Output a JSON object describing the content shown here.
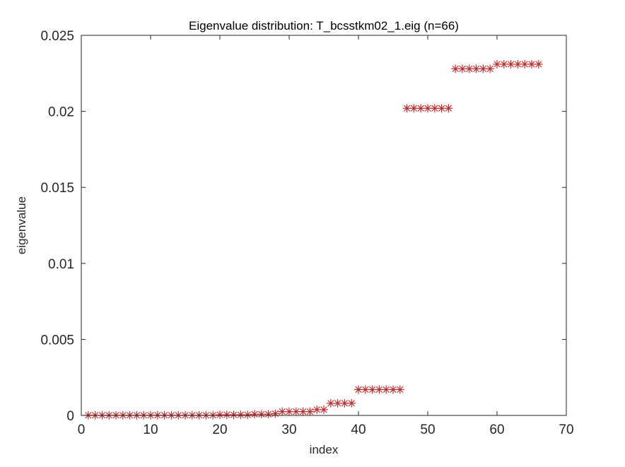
{
  "chart_data": {
    "type": "scatter",
    "title": "Eigenvalue distribution: T_bcsstkm02_1.eig (n=66)",
    "xlabel": "index",
    "ylabel": "eigenvalue",
    "xlim": [
      0,
      70
    ],
    "ylim": [
      0,
      0.025
    ],
    "xticks": [
      0,
      10,
      20,
      30,
      40,
      50,
      60,
      70
    ],
    "xtick_labels": [
      "0",
      "10",
      "20",
      "30",
      "40",
      "50",
      "60",
      "70"
    ],
    "yticks": [
      0,
      0.005,
      0.01,
      0.015,
      0.02,
      0.025
    ],
    "ytick_labels": [
      "0",
      "0.005",
      "0.01",
      "0.015",
      "0.02",
      "0.025"
    ],
    "grid": false,
    "marker": "asterisk",
    "marker_color": "#cc1f1f",
    "series": [
      {
        "x": [
          1,
          2,
          3,
          4,
          5,
          6,
          7,
          8,
          9,
          10,
          11,
          12,
          13,
          14,
          15,
          16,
          17,
          18,
          19,
          20,
          21,
          22,
          23,
          24,
          25,
          26,
          27,
          28,
          29,
          30,
          31,
          32,
          33,
          34,
          35,
          36,
          37,
          38,
          39,
          40,
          41,
          42,
          43,
          44,
          45,
          46,
          47,
          48,
          49,
          50,
          51,
          52,
          53,
          54,
          55,
          56,
          57,
          58,
          59,
          60,
          61,
          62,
          63,
          64,
          65,
          66
        ],
        "values": [
          1e-05,
          1e-05,
          1e-05,
          1e-05,
          1e-05,
          1e-05,
          1e-05,
          1e-05,
          1e-05,
          1e-05,
          1e-05,
          1e-05,
          1e-05,
          1e-05,
          1e-05,
          1e-05,
          1e-05,
          1e-05,
          1e-05,
          4e-05,
          4e-05,
          4e-05,
          4e-05,
          4e-05,
          8e-05,
          8e-05,
          8e-05,
          0.00012,
          0.00025,
          0.00025,
          0.00025,
          0.00025,
          0.00025,
          0.00038,
          0.00038,
          0.0008,
          0.0008,
          0.0008,
          0.0008,
          0.0017,
          0.0017,
          0.0017,
          0.0017,
          0.0017,
          0.0017,
          0.0017,
          0.0202,
          0.0202,
          0.0202,
          0.0202,
          0.0202,
          0.0202,
          0.0202,
          0.0228,
          0.0228,
          0.0228,
          0.0228,
          0.0228,
          0.0228,
          0.0231,
          0.0231,
          0.0231,
          0.0231,
          0.0231,
          0.0231,
          0.0231
        ]
      }
    ]
  }
}
